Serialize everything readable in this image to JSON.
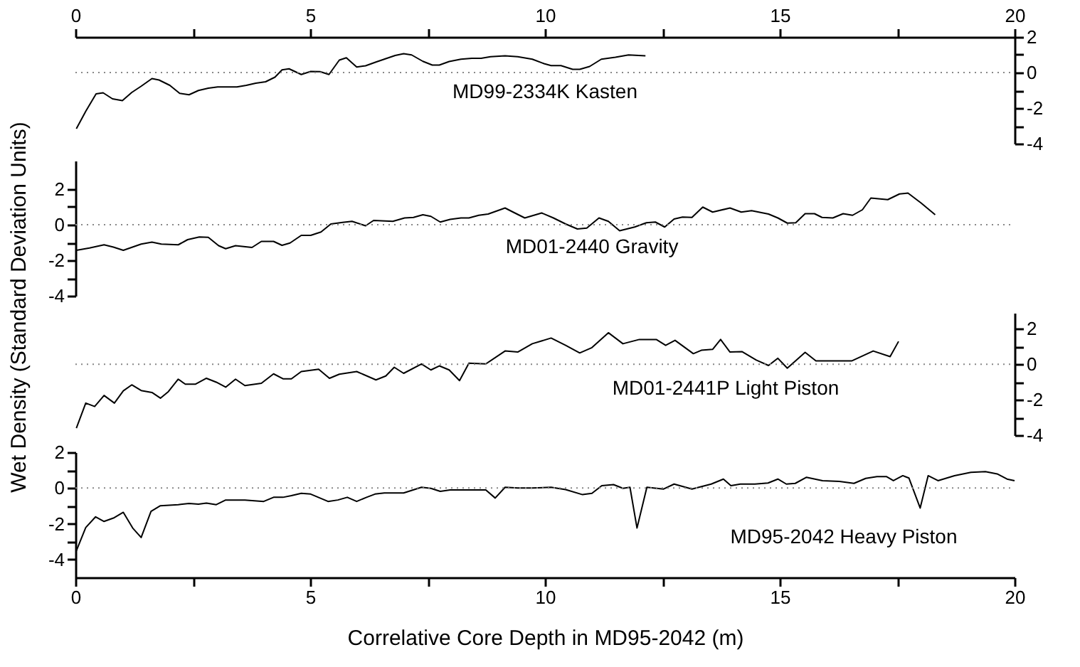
{
  "chart_data": [
    {
      "type": "line",
      "xlim": [
        0,
        20
      ],
      "xticks": [
        0,
        {
          "value": 2.5,
          "label": null
        },
        5,
        {
          "value": 7.5,
          "label": null
        },
        10,
        {
          "value": 12.5,
          "label": null
        },
        15,
        {
          "value": 17.5,
          "label": null
        },
        20
      ],
      "ylim": [
        -4,
        2
      ],
      "yticks": [
        2,
        {
          "value": 1,
          "label": null
        },
        0,
        {
          "value": -1,
          "label": null
        },
        -2,
        {
          "value": -3,
          "label": null
        },
        -4
      ],
      "series": [
        {
          "name": "MD99-2334K Kasten",
          "color": "#000000",
          "x": [
            0.02,
            0.22,
            0.44,
            0.59,
            0.79,
            1.0,
            1.2,
            1.4,
            1.63,
            1.78,
            2.01,
            2.22,
            2.42,
            2.62,
            2.83,
            3.03,
            3.23,
            3.44,
            3.64,
            3.84,
            4.05,
            4.25,
            4.4,
            4.55,
            4.81,
            5.01,
            5.21,
            5.4,
            5.62,
            5.77,
            5.99,
            6.18,
            6.4,
            6.61,
            6.81,
            6.99,
            7.16,
            7.4,
            7.6,
            7.75,
            7.96,
            8.21,
            8.44,
            8.64,
            8.84,
            9.15,
            9.42,
            9.73,
            9.98,
            10.13,
            10.34,
            10.59,
            10.74,
            10.95,
            11.2,
            11.5,
            11.78,
            12.14
          ],
          "values": [
            -3.16,
            -2.18,
            -1.2,
            -1.14,
            -1.48,
            -1.58,
            -1.12,
            -0.77,
            -0.34,
            -0.42,
            -0.72,
            -1.17,
            -1.25,
            -1.01,
            -0.88,
            -0.81,
            -0.81,
            -0.81,
            -0.72,
            -0.6,
            -0.52,
            -0.26,
            0.15,
            0.21,
            -0.11,
            0.06,
            0.05,
            -0.11,
            0.7,
            0.83,
            0.31,
            0.38,
            0.59,
            0.78,
            0.96,
            1.06,
            0.99,
            0.63,
            0.42,
            0.42,
            0.62,
            0.75,
            0.8,
            0.8,
            0.89,
            0.94,
            0.89,
            0.75,
            0.5,
            0.39,
            0.39,
            0.18,
            0.18,
            0.34,
            0.75,
            0.86,
            0.99,
            0.94
          ]
        }
      ],
      "ref_lines": [
        {
          "axis": "y",
          "value": 0,
          "line_style": "dotted",
          "color": "#888888"
        }
      ]
    },
    {
      "type": "line",
      "xlim": [
        0,
        20
      ],
      "tick_labels": "y",
      "ylim": [
        -4,
        3.6
      ],
      "yticks": [
        2,
        {
          "value": 1,
          "label": null
        },
        0,
        {
          "value": -1,
          "label": null
        },
        -2,
        {
          "value": -3,
          "label": null
        },
        -4
      ],
      "series": [
        {
          "name": "MD01-2440 Gravity",
          "color": "#000000",
          "x": [
            0.02,
            0.3,
            0.61,
            0.81,
            1.02,
            1.4,
            1.63,
            1.83,
            2.19,
            2.39,
            2.64,
            2.83,
            3.05,
            3.2,
            3.41,
            3.76,
            3.96,
            4.22,
            4.4,
            4.57,
            4.81,
            5.01,
            5.23,
            5.44,
            5.69,
            5.89,
            6.18,
            6.35,
            6.76,
            7.01,
            7.2,
            7.4,
            7.57,
            7.77,
            7.98,
            8.21,
            8.38,
            8.59,
            8.79,
            9.15,
            9.32,
            9.57,
            9.93,
            10.18,
            10.44,
            10.69,
            10.89,
            11.15,
            11.35,
            11.59,
            11.91,
            12.16,
            12.35,
            12.55,
            12.75,
            12.93,
            13.13,
            13.36,
            13.57,
            13.94,
            14.18,
            14.4,
            14.76,
            14.96,
            15.16,
            15.34,
            15.54,
            15.74,
            15.9,
            16.13,
            16.35,
            16.55,
            16.76,
            16.94,
            17.3,
            17.55,
            17.73,
            18.01,
            18.31
          ],
          "values": [
            -1.44,
            -1.31,
            -1.13,
            -1.26,
            -1.44,
            -1.09,
            -0.98,
            -1.09,
            -1.13,
            -0.84,
            -0.69,
            -0.71,
            -1.18,
            -1.35,
            -1.18,
            -1.28,
            -0.94,
            -0.94,
            -1.16,
            -1.03,
            -0.6,
            -0.6,
            -0.41,
            0.04,
            0.13,
            0.19,
            -0.06,
            0.24,
            0.19,
            0.38,
            0.41,
            0.56,
            0.47,
            0.15,
            0.3,
            0.38,
            0.38,
            0.53,
            0.6,
            0.94,
            0.71,
            0.38,
            0.66,
            0.38,
            0.04,
            -0.24,
            -0.19,
            0.38,
            0.19,
            -0.34,
            -0.13,
            0.11,
            0.15,
            -0.13,
            0.32,
            0.43,
            0.41,
            0.99,
            0.71,
            0.94,
            0.71,
            0.79,
            0.6,
            0.38,
            0.09,
            0.11,
            0.62,
            0.62,
            0.41,
            0.38,
            0.62,
            0.53,
            0.84,
            1.5,
            1.41,
            1.73,
            1.78,
            1.22,
            0.56
          ]
        }
      ],
      "ref_lines": [
        {
          "axis": "y",
          "value": 0,
          "line_style": "dotted",
          "color": "#888888"
        }
      ]
    },
    {
      "type": "line",
      "xlim": [
        0,
        20
      ],
      "tick_labels": "y",
      "ylim": [
        -4,
        2.9
      ],
      "yticks": [
        2,
        {
          "value": 1,
          "label": null
        },
        0,
        {
          "value": -1,
          "label": null
        },
        -2,
        {
          "value": -3,
          "label": null
        },
        -4
      ],
      "series": [
        {
          "name": "MD01-2441P Light Piston",
          "color": "#000000",
          "x": [
            0.02,
            0.22,
            0.41,
            0.61,
            0.83,
            1.02,
            1.2,
            1.4,
            1.63,
            1.81,
            1.98,
            2.19,
            2.34,
            2.56,
            2.79,
            3.0,
            3.2,
            3.41,
            3.61,
            3.96,
            4.22,
            4.42,
            4.6,
            4.81,
            5.18,
            5.41,
            5.62,
            5.99,
            6.4,
            6.61,
            6.79,
            6.99,
            7.37,
            7.57,
            7.75,
            7.96,
            8.18,
            8.38,
            8.74,
            9.15,
            9.42,
            9.73,
            10.13,
            10.44,
            10.74,
            11.0,
            11.35,
            11.66,
            12.01,
            12.37,
            12.57,
            12.77,
            13.16,
            13.33,
            13.57,
            13.74,
            13.94,
            14.2,
            14.5,
            14.76,
            14.96,
            15.16,
            15.54,
            15.77,
            16.23,
            16.53,
            16.99,
            17.35,
            17.53
          ],
          "values": [
            -3.6,
            -2.19,
            -2.38,
            -1.76,
            -2.19,
            -1.5,
            -1.16,
            -1.48,
            -1.59,
            -1.91,
            -1.54,
            -0.84,
            -1.12,
            -1.12,
            -0.79,
            -1.01,
            -1.29,
            -0.84,
            -1.2,
            -1.07,
            -0.54,
            -0.82,
            -0.82,
            -0.41,
            -0.28,
            -0.79,
            -0.56,
            -0.41,
            -0.88,
            -0.66,
            -0.17,
            -0.51,
            0.02,
            -0.32,
            -0.09,
            -0.32,
            -0.92,
            0.06,
            0.02,
            0.75,
            0.69,
            1.16,
            1.48,
            1.07,
            0.64,
            0.94,
            1.78,
            1.16,
            1.4,
            1.4,
            1.07,
            1.35,
            0.6,
            0.79,
            0.84,
            1.4,
            0.69,
            0.71,
            0.24,
            -0.07,
            0.34,
            -0.22,
            0.67,
            0.19,
            0.19,
            0.19,
            0.75,
            0.43,
            1.29
          ]
        }
      ],
      "ref_lines": [
        {
          "axis": "y",
          "value": 0,
          "line_style": "dotted",
          "color": "#888888"
        }
      ]
    },
    {
      "type": "line",
      "xlabel": "Correlative Core Depth in MD95-2042 (m)",
      "ylabel": "Wet Density (Standard Deviation Units)",
      "xlim": [
        0,
        20
      ],
      "xticks": [
        0,
        {
          "value": 2.5,
          "label": null
        },
        5,
        {
          "value": 7.5,
          "label": null
        },
        10,
        {
          "value": 12.5,
          "label": null
        },
        15,
        {
          "value": 17.5,
          "label": null
        },
        20
      ],
      "ylim": [
        -5,
        2
      ],
      "yticks": [
        2,
        {
          "value": 1,
          "label": null
        },
        0,
        {
          "value": -1,
          "label": null
        },
        -2,
        {
          "value": -3,
          "label": null
        },
        -4
      ],
      "series": [
        {
          "name": "MD95-2042 Heavy Piston",
          "color": "#000000",
          "x": [
            0.02,
            0.22,
            0.43,
            0.61,
            0.81,
            1.02,
            1.22,
            1.4,
            1.61,
            1.81,
            2.19,
            2.42,
            2.62,
            2.79,
            3.0,
            3.2,
            3.61,
            4.01,
            4.22,
            4.42,
            4.6,
            4.81,
            5.01,
            5.38,
            5.59,
            5.79,
            5.99,
            6.2,
            6.38,
            6.58,
            6.99,
            7.37,
            7.57,
            7.77,
            7.98,
            8.38,
            8.74,
            8.94,
            9.15,
            9.42,
            9.73,
            10.13,
            10.44,
            10.8,
            11.0,
            11.21,
            11.46,
            11.66,
            11.81,
            11.96,
            12.17,
            12.52,
            12.75,
            13.13,
            13.54,
            13.8,
            13.96,
            14.16,
            14.47,
            14.75,
            14.96,
            15.14,
            15.33,
            15.57,
            15.91,
            16.27,
            16.58,
            16.83,
            17.07,
            17.27,
            17.42,
            17.62,
            17.75,
            17.99,
            18.16,
            18.37,
            18.72,
            19.07,
            19.38,
            19.63,
            19.84,
            20.0
          ],
          "values": [
            -3.51,
            -2.21,
            -1.61,
            -1.87,
            -1.68,
            -1.36,
            -2.24,
            -2.77,
            -1.31,
            -0.99,
            -0.93,
            -0.86,
            -0.9,
            -0.84,
            -0.93,
            -0.67,
            -0.67,
            -0.75,
            -0.52,
            -0.52,
            -0.43,
            -0.3,
            -0.34,
            -0.75,
            -0.67,
            -0.52,
            -0.75,
            -0.52,
            -0.34,
            -0.28,
            -0.28,
            0.04,
            -0.02,
            -0.19,
            -0.11,
            -0.11,
            -0.11,
            -0.56,
            0.04,
            0.0,
            0.0,
            0.04,
            -0.09,
            -0.37,
            -0.3,
            0.13,
            0.19,
            -0.02,
            0.04,
            -2.24,
            0.04,
            -0.06,
            0.22,
            -0.06,
            0.22,
            0.5,
            0.13,
            0.22,
            0.22,
            0.28,
            0.5,
            0.22,
            0.26,
            0.6,
            0.41,
            0.37,
            0.26,
            0.54,
            0.64,
            0.64,
            0.41,
            0.69,
            0.56,
            -1.12,
            0.69,
            0.41,
            0.69,
            0.88,
            0.92,
            0.79,
            0.5,
            0.41
          ]
        }
      ],
      "ref_lines": [
        {
          "axis": "y",
          "value": 0,
          "line_style": "dotted",
          "color": "#888888"
        }
      ]
    }
  ]
}
